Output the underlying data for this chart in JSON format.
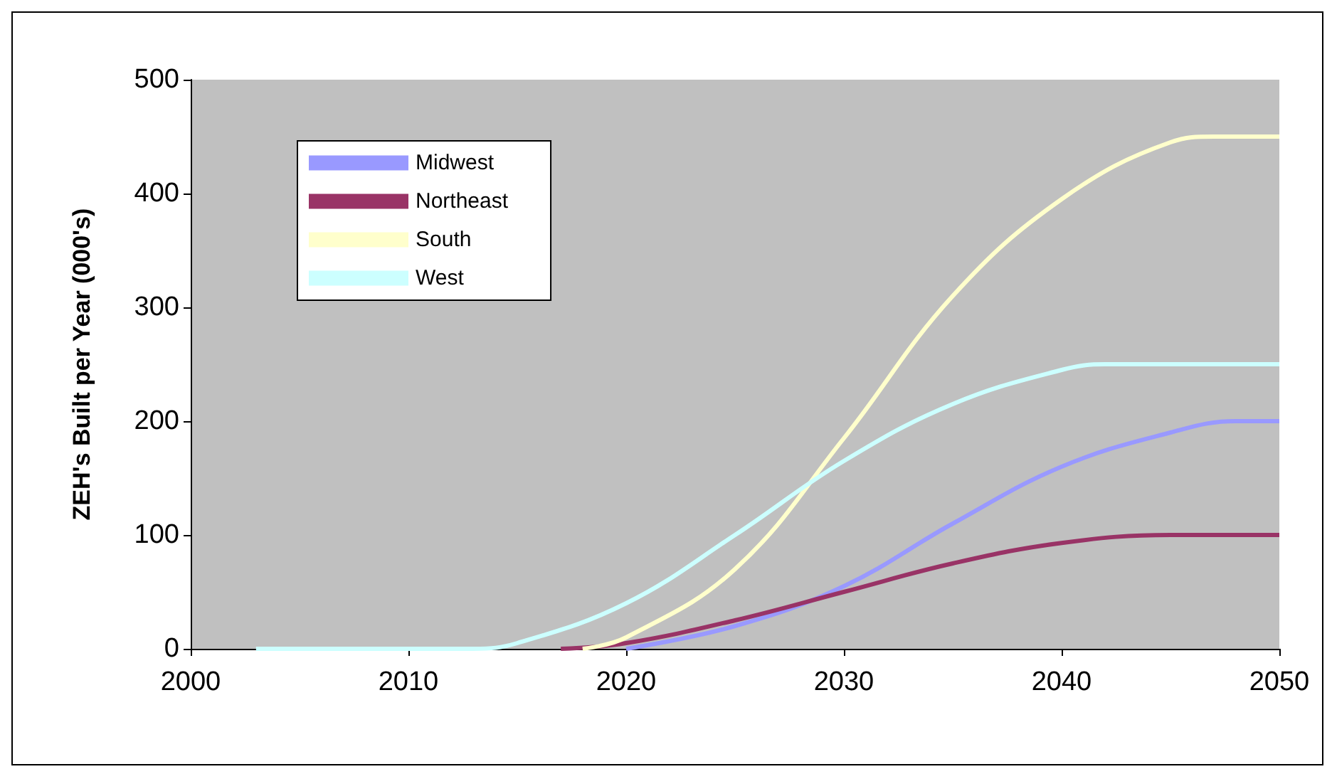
{
  "chart_data": {
    "type": "line",
    "ylabel": "ZEH's Built per Year (000's)",
    "xlim": [
      2000,
      2050
    ],
    "xticks": [
      2000,
      2010,
      2020,
      2030,
      2040,
      2050
    ],
    "ylim": [
      0,
      500
    ],
    "yticks": [
      0,
      100,
      200,
      300,
      400,
      500
    ],
    "grid": false,
    "legend": "top left",
    "marker": "none",
    "line_style": "solid",
    "series": [
      {
        "name": "Midwest",
        "color": "#9999ff",
        "x": [
          2020,
          2025,
          2030,
          2035,
          2040,
          2045,
          2048,
          2050
        ],
        "values": [
          0,
          20,
          55,
          110,
          160,
          190,
          200,
          200
        ]
      },
      {
        "name": "Northeast",
        "color": "#993366",
        "x": [
          2017,
          2020,
          2025,
          2030,
          2035,
          2040,
          2045,
          2050
        ],
        "values": [
          0,
          5,
          25,
          50,
          75,
          93,
          100,
          100
        ]
      },
      {
        "name": "South",
        "color": "#ffffcc",
        "x": [
          2018,
          2020,
          2025,
          2030,
          2035,
          2040,
          2045,
          2047,
          2050
        ],
        "values": [
          0,
          10,
          70,
          185,
          310,
          395,
          445,
          450,
          450
        ]
      },
      {
        "name": "West",
        "color": "#ccffff",
        "x": [
          2003,
          2010,
          2013,
          2015,
          2020,
          2025,
          2030,
          2035,
          2040,
          2042,
          2050
        ],
        "values": [
          0,
          0,
          0,
          5,
          40,
          100,
          165,
          215,
          245,
          250,
          250
        ]
      }
    ]
  }
}
